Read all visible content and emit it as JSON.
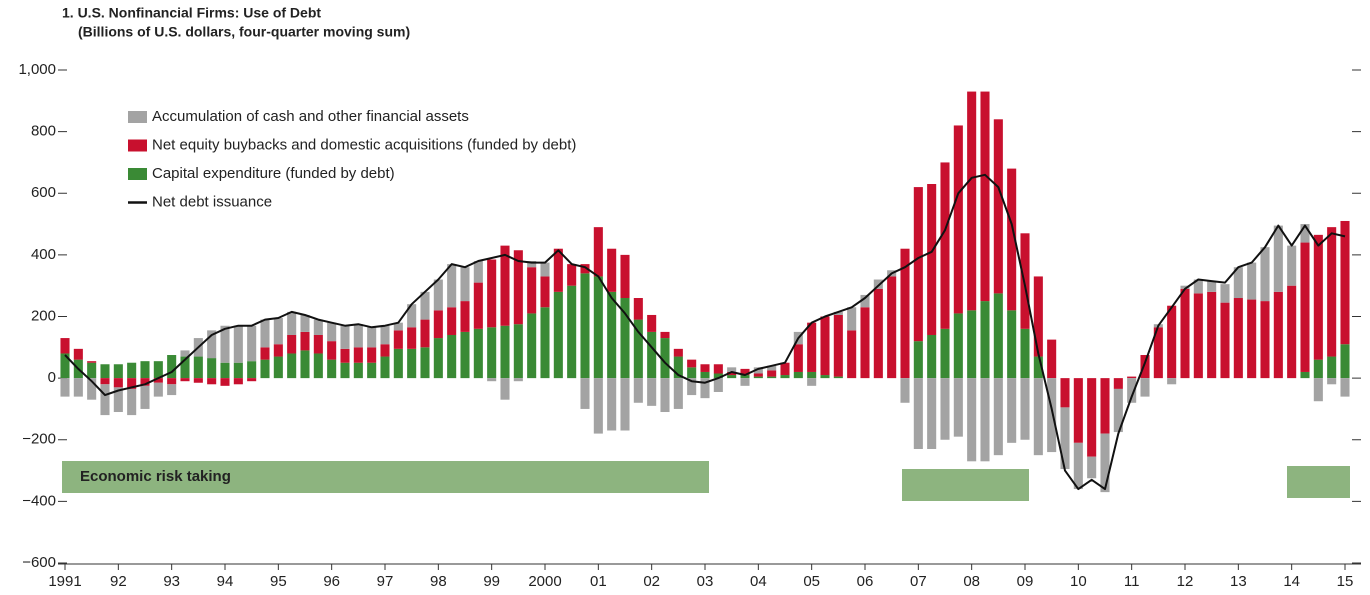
{
  "chart_data": {
    "type": "bar",
    "title": "1. U.S. Nonfinancial Firms: Use of Debt",
    "subtitle": "(Billions of U.S. dollars, four-quarter moving sum)",
    "annotations": [
      "Economic risk taking"
    ],
    "categories": [
      "1991",
      null,
      null,
      null,
      "92",
      null,
      null,
      null,
      "93",
      null,
      null,
      null,
      "94",
      null,
      null,
      null,
      "95",
      null,
      null,
      null,
      "96",
      null,
      null,
      null,
      "97",
      null,
      null,
      null,
      "98",
      null,
      null,
      null,
      "99",
      null,
      null,
      null,
      "2000",
      null,
      null,
      null,
      "01",
      null,
      null,
      null,
      "02",
      null,
      null,
      null,
      "03",
      null,
      null,
      null,
      "04",
      null,
      null,
      null,
      "05",
      null,
      null,
      null,
      "06",
      null,
      null,
      null,
      "07",
      null,
      null,
      null,
      "08",
      null,
      null,
      null,
      "09",
      null,
      null,
      null,
      "10",
      null,
      null,
      null,
      "11",
      null,
      null,
      null,
      "12",
      null,
      null,
      null,
      "13",
      null,
      null,
      null,
      "14",
      null,
      null,
      null,
      "15"
    ],
    "ylim": [
      -600,
      1000
    ],
    "yticks": [
      {
        "value": -600,
        "label": "−600"
      },
      {
        "value": -400,
        "label": "−400"
      },
      {
        "value": -200,
        "label": "−200"
      },
      0,
      200,
      400,
      600,
      800,
      {
        "value": 1000,
        "label": "1,000"
      }
    ],
    "stacked": true,
    "series": [
      {
        "name": "Accumulation of cash and other financial assets",
        "color": "#a3a3a3",
        "type": "bar",
        "values": [
          -60,
          -60,
          -70,
          -100,
          -80,
          -85,
          -75,
          -45,
          -35,
          20,
          60,
          90,
          120,
          120,
          115,
          90,
          85,
          75,
          55,
          50,
          60,
          75,
          75,
          65,
          60,
          25,
          75,
          90,
          100,
          140,
          110,
          70,
          -10,
          -70,
          -10,
          20,
          45,
          0,
          0,
          -100,
          -180,
          -170,
          -170,
          -80,
          -90,
          -110,
          -100,
          -55,
          -65,
          -45,
          15,
          -25,
          20,
          15,
          0,
          40,
          -25,
          0,
          10,
          75,
          40,
          30,
          20,
          -80,
          -230,
          -230,
          -200,
          -190,
          -270,
          -270,
          -250,
          -210,
          -200,
          -250,
          -240,
          -200,
          -150,
          -70,
          -190,
          -140,
          -80,
          -60,
          10,
          -20,
          10,
          45,
          35,
          60,
          100,
          120,
          175,
          215,
          130,
          60,
          -75,
          -20,
          -60
        ]
      },
      {
        "name": "Net equity buybacks and domestic acquisitions (funded by debt)",
        "color": "#c8102e",
        "type": "bar",
        "values": [
          50,
          35,
          5,
          -20,
          -30,
          -35,
          -25,
          -15,
          -20,
          -10,
          -15,
          -20,
          -25,
          -20,
          -10,
          40,
          40,
          60,
          60,
          60,
          60,
          45,
          50,
          50,
          40,
          60,
          70,
          90,
          90,
          90,
          100,
          150,
          220,
          260,
          240,
          150,
          100,
          140,
          70,
          30,
          160,
          140,
          140,
          70,
          55,
          20,
          25,
          25,
          25,
          30,
          10,
          20,
          10,
          20,
          40,
          90,
          160,
          190,
          200,
          155,
          230,
          290,
          330,
          420,
          500,
          490,
          540,
          610,
          710,
          680,
          565,
          460,
          310,
          260,
          125,
          -95,
          -210,
          -255,
          -180,
          -35,
          5,
          75,
          165,
          235,
          290,
          275,
          280,
          245,
          260,
          255,
          250,
          280,
          300,
          420,
          405,
          420,
          400
        ]
      },
      {
        "name": "Capital expenditure (funded by debt)",
        "color": "#3a8a35",
        "type": "bar",
        "values": [
          80,
          60,
          50,
          45,
          45,
          50,
          55,
          55,
          75,
          70,
          70,
          65,
          50,
          50,
          55,
          60,
          70,
          80,
          90,
          80,
          60,
          50,
          50,
          50,
          70,
          95,
          95,
          100,
          130,
          140,
          150,
          160,
          165,
          170,
          175,
          210,
          230,
          280,
          300,
          340,
          330,
          280,
          260,
          190,
          150,
          130,
          70,
          35,
          20,
          15,
          10,
          10,
          5,
          5,
          10,
          20,
          20,
          10,
          5,
          0,
          0,
          0,
          0,
          0,
          120,
          140,
          160,
          210,
          220,
          250,
          275,
          220,
          160,
          70,
          0,
          0,
          0,
          0,
          0,
          0,
          0,
          0,
          0,
          0,
          0,
          0,
          0,
          0,
          0,
          0,
          0,
          0,
          0,
          20,
          60,
          70,
          110
        ]
      },
      {
        "name": "Net debt issuance",
        "color": "#111111",
        "type": "line",
        "values": [
          75,
          30,
          -10,
          -55,
          -40,
          -30,
          -20,
          0,
          20,
          60,
          100,
          140,
          160,
          170,
          170,
          190,
          195,
          215,
          205,
          190,
          180,
          170,
          175,
          165,
          170,
          180,
          240,
          280,
          320,
          370,
          360,
          380,
          390,
          400,
          380,
          375,
          375,
          415,
          370,
          360,
          330,
          260,
          210,
          150,
          100,
          50,
          10,
          -10,
          -15,
          0,
          20,
          10,
          30,
          40,
          50,
          130,
          180,
          200,
          215,
          230,
          260,
          300,
          340,
          360,
          390,
          410,
          480,
          600,
          650,
          660,
          620,
          500,
          300,
          80,
          -100,
          -300,
          -360,
          -330,
          -360,
          -180,
          -60,
          50,
          170,
          230,
          290,
          320,
          315,
          310,
          360,
          375,
          425,
          495,
          430,
          495,
          430,
          470,
          460
        ]
      }
    ]
  }
}
